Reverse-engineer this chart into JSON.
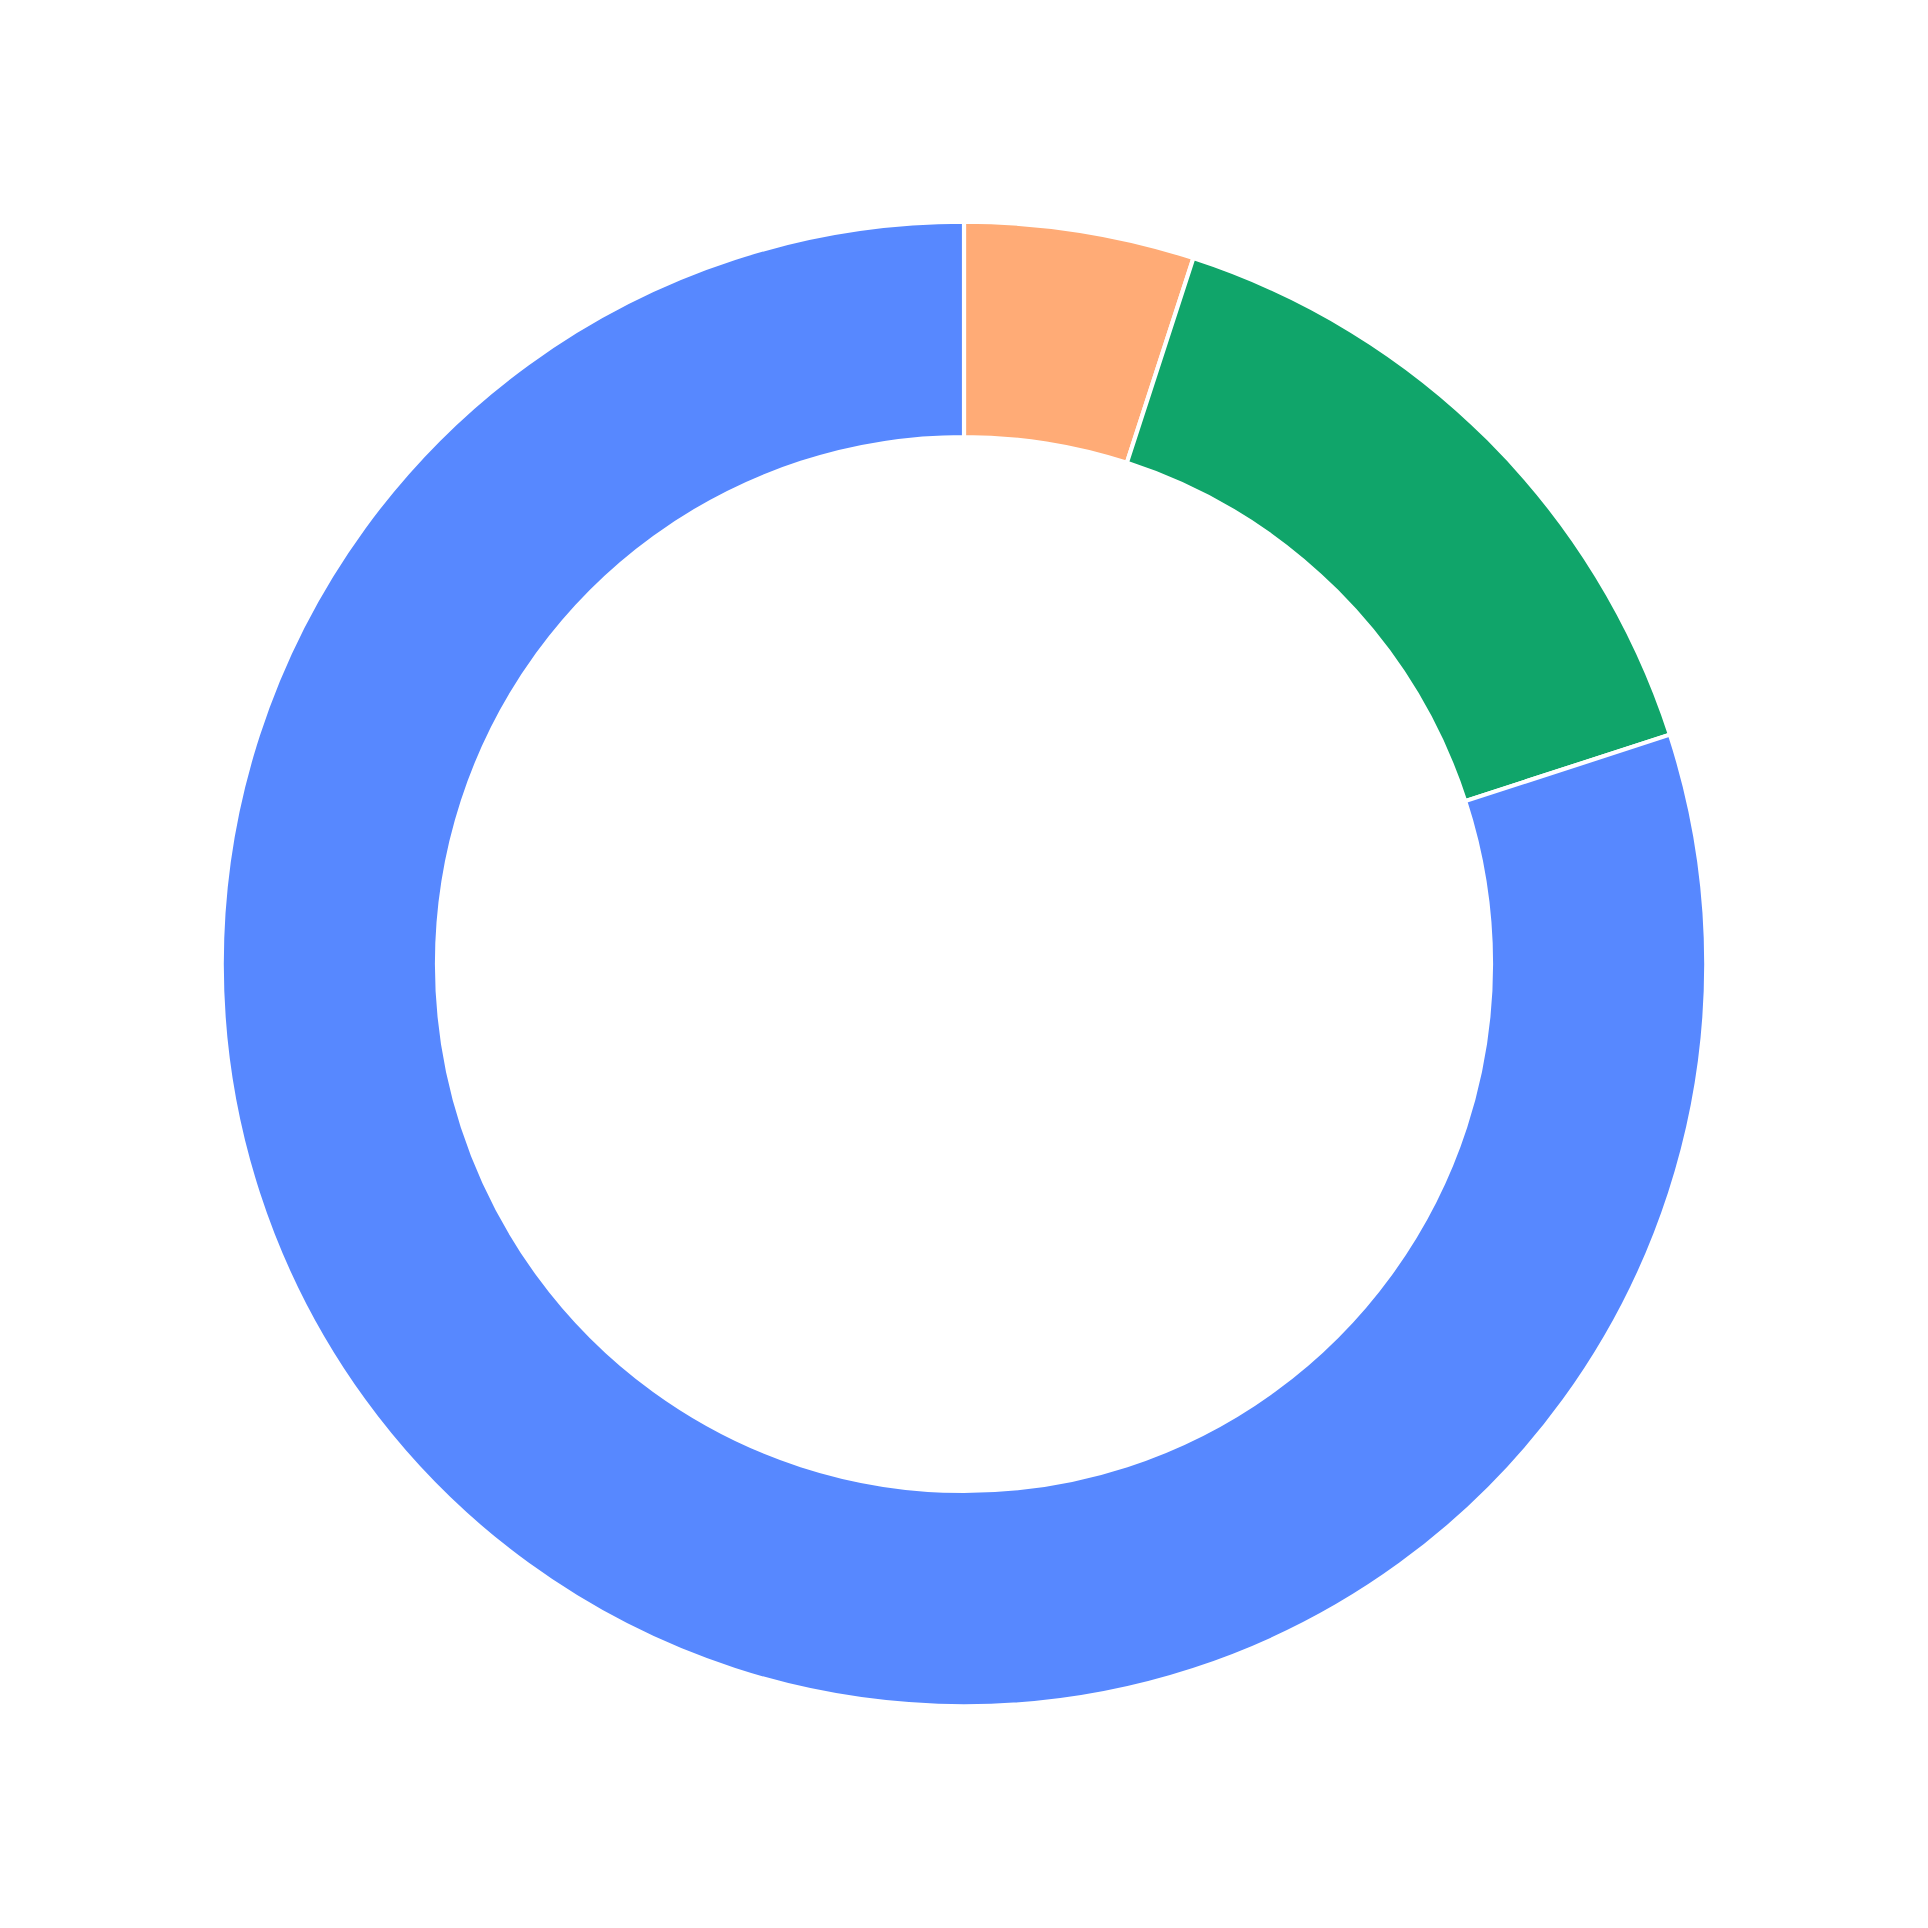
{
  "chart_data": {
    "type": "donut",
    "categories": [
      null,
      null,
      null
    ],
    "values": [
      5,
      15,
      80
    ],
    "colors": [
      "#ffab76",
      "#10a56a",
      "#5788ff"
    ]
  }
}
